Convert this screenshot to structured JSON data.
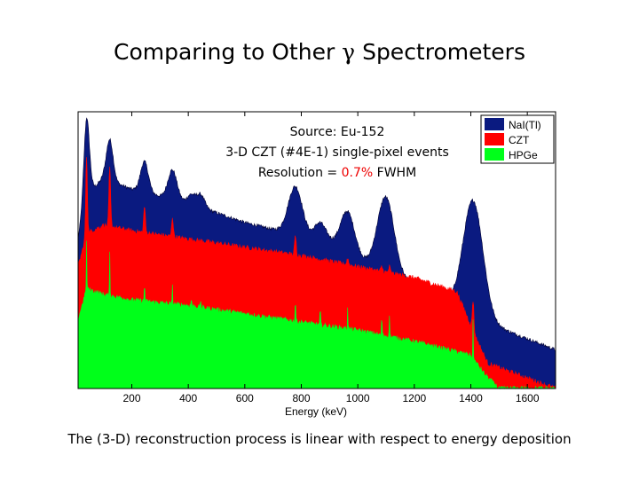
{
  "slide": {
    "title_prefix": "Comparing to Other ",
    "title_symbol": "γ",
    "title_suffix": " Spectrometers",
    "caption": "The (3-D) reconstruction process is linear with respect to energy deposition"
  },
  "chart_data": {
    "type": "area",
    "xlabel": "Energy (keV)",
    "ylabel": "",
    "xlim": [
      10,
      1700
    ],
    "x_ticks": [
      200,
      400,
      600,
      800,
      1000,
      1200,
      1400,
      1600
    ],
    "grid": false,
    "legend_position": "top-right",
    "annotation": {
      "line1": "Source: Eu-152",
      "line2": "3-D CZT (#4E-1) single-pixel events",
      "line3_prefix": "Resolution = ",
      "line3_value": "0.7%",
      "line3_suffix": " FWHM",
      "value_color": "#ee0000"
    },
    "series": [
      {
        "name": "NaI(Tl)",
        "color": "#0a1a80",
        "baseline_profile": [
          [
            10,
            0.54
          ],
          [
            40,
            0.7
          ],
          [
            100,
            0.76
          ],
          [
            200,
            0.72
          ],
          [
            400,
            0.67
          ],
          [
            600,
            0.6
          ],
          [
            800,
            0.55
          ],
          [
            900,
            0.53
          ],
          [
            1000,
            0.47
          ],
          [
            1200,
            0.38
          ],
          [
            1300,
            0.33
          ],
          [
            1400,
            0.26
          ],
          [
            1700,
            0.14
          ]
        ],
        "peaks": [
          [
            40,
            0.98,
            10
          ],
          [
            122,
            0.9,
            12
          ],
          [
            245,
            0.82,
            14
          ],
          [
            344,
            0.79,
            16
          ],
          [
            411,
            0.7,
            14
          ],
          [
            444,
            0.7,
            14
          ],
          [
            779,
            0.73,
            25
          ],
          [
            867,
            0.6,
            20
          ],
          [
            964,
            0.64,
            25
          ],
          [
            1085,
            0.58,
            25
          ],
          [
            1112,
            0.58,
            25
          ],
          [
            1408,
            0.68,
            35
          ]
        ]
      },
      {
        "name": "CZT",
        "color": "#ff0000",
        "baseline_profile": [
          [
            10,
            0.44
          ],
          [
            40,
            0.56
          ],
          [
            100,
            0.59
          ],
          [
            200,
            0.57
          ],
          [
            400,
            0.54
          ],
          [
            600,
            0.51
          ],
          [
            800,
            0.48
          ],
          [
            1000,
            0.44
          ],
          [
            1200,
            0.4
          ],
          [
            1350,
            0.35
          ],
          [
            1420,
            0.18
          ],
          [
            1460,
            0.09
          ],
          [
            1700,
            0.0
          ]
        ],
        "peaks": [
          [
            40,
            0.84,
            3
          ],
          [
            122,
            0.8,
            3
          ],
          [
            245,
            0.66,
            3
          ],
          [
            344,
            0.62,
            3
          ],
          [
            411,
            0.52,
            2.5
          ],
          [
            444,
            0.51,
            2.5
          ],
          [
            779,
            0.55,
            3
          ],
          [
            867,
            0.45,
            2.5
          ],
          [
            964,
            0.47,
            3
          ],
          [
            1085,
            0.44,
            3
          ],
          [
            1112,
            0.44,
            3
          ],
          [
            1299,
            0.3,
            2.5
          ],
          [
            1408,
            0.32,
            3
          ]
        ]
      },
      {
        "name": "HPGe",
        "color": "#00ff1a",
        "baseline_profile": [
          [
            10,
            0.25
          ],
          [
            40,
            0.36
          ],
          [
            100,
            0.34
          ],
          [
            200,
            0.32
          ],
          [
            400,
            0.3
          ],
          [
            600,
            0.27
          ],
          [
            800,
            0.24
          ],
          [
            1000,
            0.21
          ],
          [
            1200,
            0.17
          ],
          [
            1400,
            0.12
          ],
          [
            1450,
            0.05
          ],
          [
            1500,
            0.0
          ],
          [
            1700,
            0.0
          ]
        ],
        "peaks": [
          [
            40,
            0.53,
            1
          ],
          [
            122,
            0.49,
            1
          ],
          [
            245,
            0.39,
            1
          ],
          [
            344,
            0.37,
            1
          ],
          [
            411,
            0.33,
            1
          ],
          [
            444,
            0.32,
            1
          ],
          [
            779,
            0.34,
            1
          ],
          [
            867,
            0.3,
            1
          ],
          [
            964,
            0.3,
            1
          ],
          [
            1085,
            0.27,
            1
          ],
          [
            1112,
            0.27,
            1
          ],
          [
            1408,
            0.24,
            1
          ]
        ]
      }
    ]
  }
}
